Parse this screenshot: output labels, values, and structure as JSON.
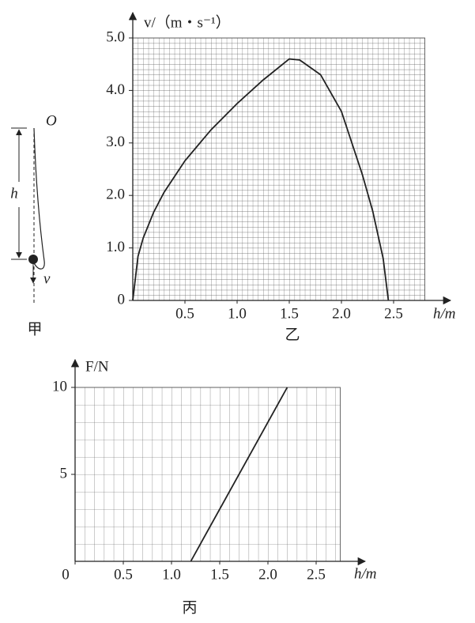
{
  "chart_data": [
    {
      "type": "line",
      "caption": "乙",
      "x_label": "h/m",
      "y_label": "v/（m・s⁻¹）",
      "x": [
        0,
        0.05,
        0.1,
        0.2,
        0.3,
        0.5,
        0.75,
        1.0,
        1.25,
        1.5,
        1.6,
        1.8,
        2.0,
        2.2,
        2.3,
        2.4,
        2.45
      ],
      "series": [
        {
          "color": "#222222",
          "values": [
            0,
            0.84,
            1.19,
            1.68,
            2.06,
            2.66,
            3.25,
            3.75,
            4.2,
            4.6,
            4.58,
            4.3,
            3.6,
            2.4,
            1.7,
            0.8,
            0
          ]
        }
      ],
      "xlim": [
        0,
        2.8
      ],
      "ylim": [
        0,
        5
      ],
      "xticks": [
        {
          "value": 0.5,
          "label": "0.5"
        },
        {
          "value": 1,
          "label": "1.0"
        },
        {
          "value": 1.5,
          "label": "1.5"
        },
        {
          "value": 2,
          "label": "2.0"
        },
        {
          "value": 2.5,
          "label": "2.5"
        }
      ],
      "yticks": [
        0,
        {
          "value": 1,
          "label": "1.0"
        },
        {
          "value": 2,
          "label": "2.0"
        },
        {
          "value": 3,
          "label": "3.0"
        },
        {
          "value": 4,
          "label": "4.0"
        },
        {
          "value": 5,
          "label": "5.0"
        }
      ],
      "grid": true
    },
    {
      "type": "line",
      "caption": "丙",
      "x_label": "h/m",
      "y_label": "F/N",
      "x": [
        1.2,
        2.2
      ],
      "series": [
        {
          "color": "#222222",
          "values": [
            0,
            10
          ]
        }
      ],
      "xlim": [
        0,
        2.75
      ],
      "ylim": [
        0,
        10
      ],
      "xticks": [
        0,
        {
          "value": 0.5,
          "label": "0.5"
        },
        {
          "value": 1,
          "label": "1.0"
        },
        {
          "value": 1.5,
          "label": "1.5"
        },
        {
          "value": 2,
          "label": "2.0"
        },
        {
          "value": 2.5,
          "label": "2.5"
        }
      ],
      "yticks": [
        5,
        10
      ],
      "grid": true
    }
  ],
  "diagram": {
    "point": "O",
    "height": "h",
    "velocity": "v",
    "caption": "甲"
  }
}
